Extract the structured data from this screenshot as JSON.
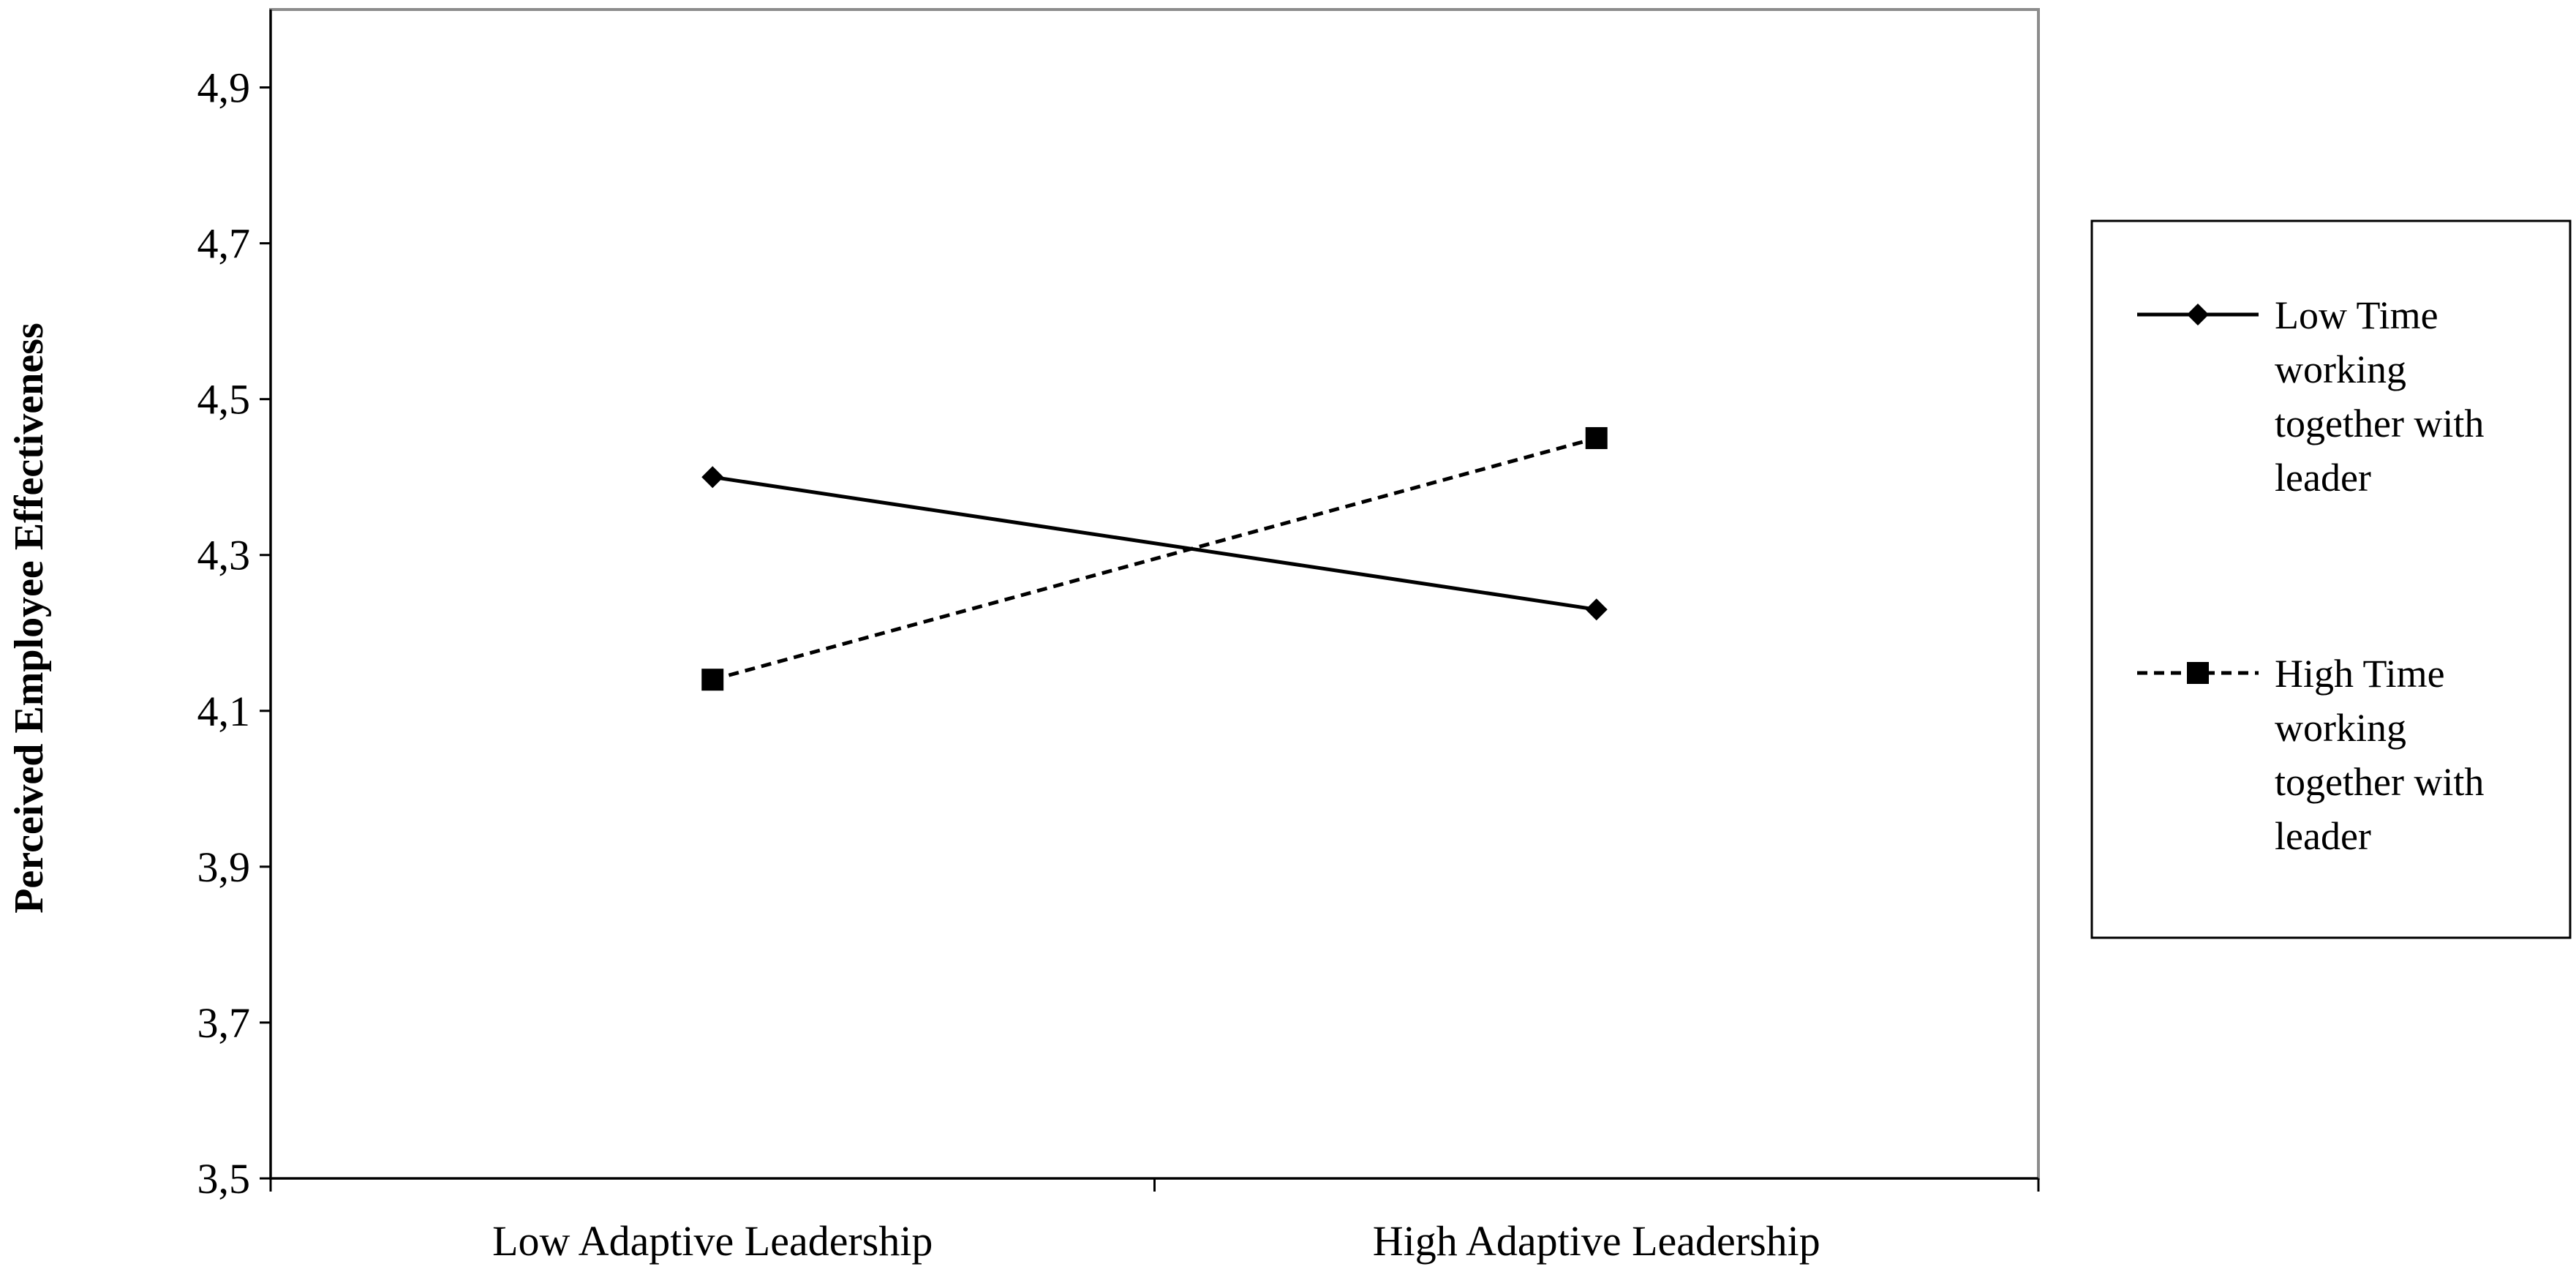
{
  "chart_data": {
    "type": "line",
    "title": "",
    "xlabel": "",
    "ylabel": "Perceived Employee  Effectiveness",
    "categories": [
      "Low Adaptive Leadership",
      "High Adaptive Leadership"
    ],
    "ylim": [
      3.5,
      5.0
    ],
    "yticks": [
      "3,5",
      "3,7",
      "3,9",
      "4,1",
      "4,3",
      "4,5",
      "4,7",
      "4,9"
    ],
    "ytick_values": [
      3.5,
      3.7,
      3.9,
      4.1,
      4.3,
      4.5,
      4.7,
      4.9
    ],
    "grid": false,
    "legend_position": "right",
    "series": [
      {
        "name_lines": [
          "Low Time",
          "working",
          "together with",
          "leader"
        ],
        "marker": "diamond",
        "line_style": "solid",
        "color": "#000000",
        "values": [
          4.4,
          4.23
        ]
      },
      {
        "name_lines": [
          "High Time",
          "working",
          "together with",
          "leader"
        ],
        "marker": "square",
        "line_style": "dashed",
        "color": "#000000",
        "values": [
          4.14,
          4.45
        ]
      }
    ]
  }
}
